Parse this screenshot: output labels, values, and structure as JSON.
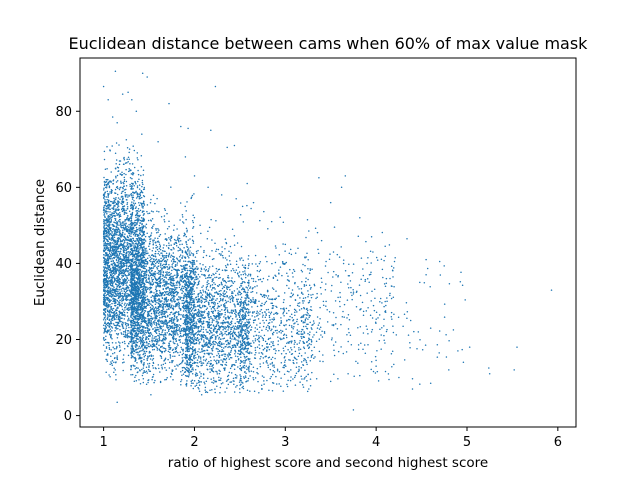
{
  "chart_data": {
    "type": "scatter",
    "title": "Euclidean distance between cams when 60% of max value mask",
    "xlabel": "ratio of highest score and second highest score",
    "ylabel": "Euclidean distance",
    "xlim": [
      0.74,
      6.2
    ],
    "ylim": [
      -3,
      94
    ],
    "xticks": [
      1,
      2,
      3,
      4,
      5,
      6
    ],
    "yticks": [
      0,
      20,
      40,
      60,
      80
    ],
    "grid": false,
    "legend": "none",
    "marker_color": "#1f77b4",
    "approx_point_count": 9000,
    "points": [
      [
        1.0,
        86.5
      ],
      [
        1.13,
        90.5
      ],
      [
        1.43,
        90.0
      ],
      [
        1.48,
        89.0
      ],
      [
        2.23,
        86.5
      ],
      [
        1.27,
        85.0
      ],
      [
        1.21,
        84.5
      ],
      [
        1.31,
        83.0
      ],
      [
        1.72,
        82.0
      ],
      [
        1.05,
        83.0
      ],
      [
        1.1,
        78.5
      ],
      [
        1.15,
        77.0
      ],
      [
        1.85,
        76.0
      ],
      [
        1.93,
        75.5
      ],
      [
        2.18,
        75.0
      ],
      [
        2.44,
        71.0
      ],
      [
        2.36,
        70.5
      ],
      [
        2.58,
        61.0
      ],
      [
        2.85,
        51.0
      ],
      [
        3.37,
        62.5
      ],
      [
        3.5,
        56.0
      ],
      [
        3.62,
        60.0
      ],
      [
        3.66,
        63.0
      ],
      [
        3.0,
        45.0
      ],
      [
        3.14,
        44.0
      ],
      [
        3.4,
        46.0
      ],
      [
        3.53,
        43.0
      ],
      [
        3.82,
        52.0
      ],
      [
        3.95,
        47.0
      ],
      [
        4.1,
        44.5
      ],
      [
        4.21,
        41.5
      ],
      [
        4.34,
        46.5
      ],
      [
        4.55,
        41.0
      ],
      [
        4.7,
        40.5
      ],
      [
        3.9,
        40.0
      ],
      [
        3.58,
        36.5
      ],
      [
        4.1,
        30.0
      ],
      [
        4.38,
        25.0
      ],
      [
        4.6,
        23.0
      ],
      [
        4.48,
        35.0
      ],
      [
        4.55,
        37.0
      ],
      [
        3.75,
        32.0
      ],
      [
        3.95,
        22.0
      ],
      [
        4.0,
        14.5
      ],
      [
        3.75,
        1.5
      ],
      [
        4.9,
        17.0
      ],
      [
        5.03,
        18.0
      ],
      [
        5.25,
        11.0
      ],
      [
        5.24,
        12.5
      ],
      [
        5.52,
        12.0
      ],
      [
        5.55,
        18.0
      ],
      [
        5.93,
        33.0
      ],
      [
        4.0,
        13.0
      ],
      [
        4.25,
        10.0
      ],
      [
        4.4,
        7.0
      ],
      [
        4.6,
        8.5
      ],
      [
        4.8,
        12.0
      ],
      [
        4.96,
        14.0
      ],
      [
        1.15,
        3.5
      ],
      [
        1.52,
        5.5
      ],
      [
        2.08,
        5.5
      ],
      [
        2.28,
        6.0
      ],
      [
        2.74,
        8.0
      ],
      [
        3.2,
        7.5
      ],
      [
        3.5,
        9.0
      ],
      [
        3.82,
        10.5
      ],
      [
        3.06,
        12.0
      ],
      [
        3.3,
        16.0
      ],
      [
        2.95,
        20.0
      ],
      [
        2.6,
        30.0
      ],
      [
        2.7,
        27.0
      ],
      [
        2.42,
        49.0
      ],
      [
        2.53,
        55.0
      ],
      [
        2.65,
        56.0
      ],
      [
        2.46,
        57.0
      ],
      [
        2.3,
        58.0
      ],
      [
        2.15,
        60.0
      ],
      [
        2.0,
        63.0
      ],
      [
        1.9,
        68.0
      ],
      [
        1.6,
        72.0
      ],
      [
        1.42,
        74.0
      ],
      [
        1.36,
        80.0
      ],
      [
        1.25,
        72.5
      ]
    ],
    "clusters": [
      {
        "xmin": 1.0,
        "xmax": 1.45,
        "ymin": 8,
        "ymax": 72,
        "ycenter": 40,
        "spread": 12,
        "count": 2800
      },
      {
        "xmin": 1.3,
        "xmax": 2.0,
        "ymin": 8,
        "ymax": 66,
        "ycenter": 30,
        "spread": 10,
        "count": 2700
      },
      {
        "xmin": 1.9,
        "xmax": 2.6,
        "ymin": 6,
        "ymax": 60,
        "ycenter": 24,
        "spread": 9,
        "count": 1700
      },
      {
        "xmin": 2.5,
        "xmax": 3.3,
        "ymin": 6,
        "ymax": 55,
        "ycenter": 23,
        "spread": 9,
        "count": 800
      },
      {
        "xmin": 3.2,
        "xmax": 4.2,
        "ymin": 8,
        "ymax": 50,
        "ycenter": 26,
        "spread": 10,
        "count": 280
      },
      {
        "xmin": 4.1,
        "xmax": 5.0,
        "ymin": 8,
        "ymax": 42,
        "ycenter": 25,
        "spread": 9,
        "count": 60
      }
    ]
  }
}
